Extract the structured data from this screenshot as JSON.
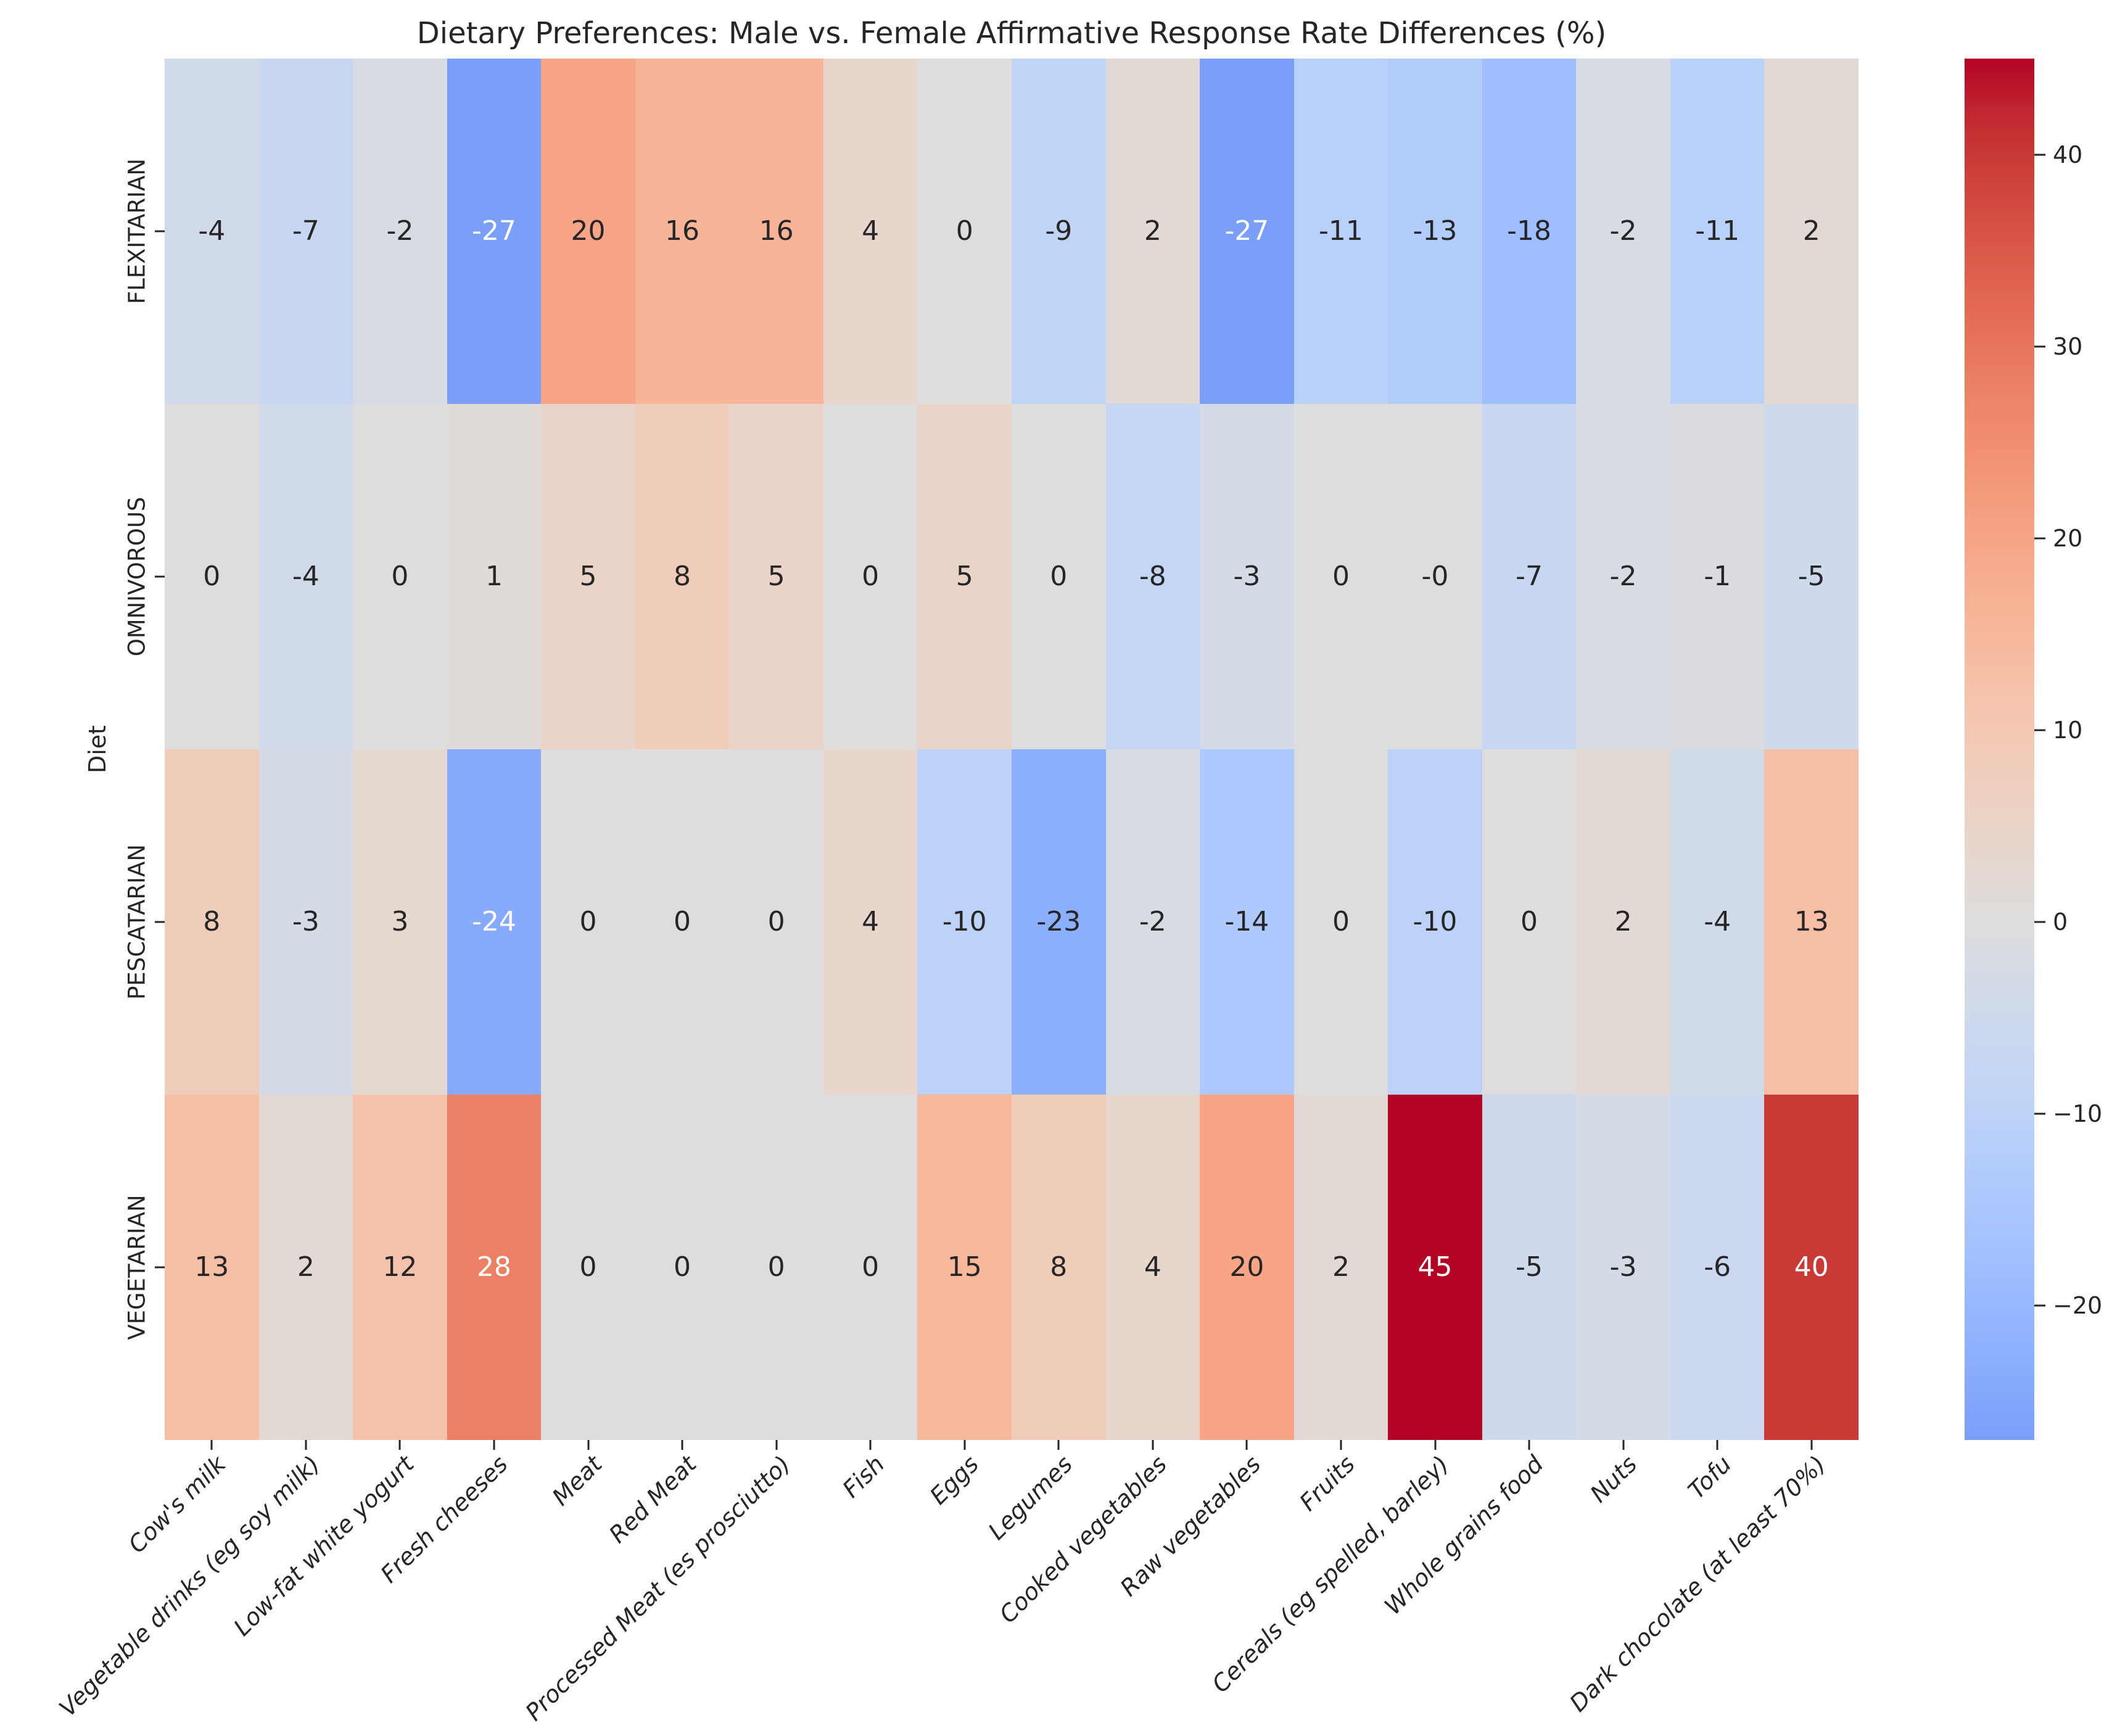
{
  "chart_data": {
    "type": "heatmap",
    "title": "Dietary Preferences: Male vs. Female Affirmative Response Rate Differences (%)",
    "xlabel": "",
    "ylabel": "Diet",
    "rows": [
      "FLEXITARIAN",
      "OMNIVOROUS",
      "PESCATARIAN",
      "VEGETARIAN"
    ],
    "columns": [
      "Cow's milk",
      "Vegetable drinks (eg soy milk)",
      "Low-fat white yogurt",
      "Fresh cheeses",
      "Meat",
      "Red Meat",
      "Processed Meat (es prosciutto)",
      "Fish",
      "Eggs",
      "Legumes",
      "Cooked vegetables",
      "Raw vegetables",
      "Fruits",
      "Cereals (eg spelled, barley)",
      "Whole grains food",
      "Nuts",
      "Tofu",
      "Dark chocolate (at least 70%)"
    ],
    "values": [
      [
        -4,
        -7,
        -2,
        -27,
        20,
        16,
        16,
        4,
        0,
        -9,
        2,
        -27,
        -11,
        -13,
        -18,
        -2,
        -11,
        2
      ],
      [
        0,
        -4,
        0,
        1,
        5,
        8,
        5,
        0,
        5,
        0,
        -8,
        -3,
        0,
        0,
        -7,
        -2,
        -1,
        -5
      ],
      [
        8,
        -3,
        3,
        -24,
        0,
        0,
        0,
        4,
        -10,
        -23,
        -2,
        -14,
        0,
        -10,
        0,
        2,
        -4,
        13
      ],
      [
        13,
        2,
        12,
        28,
        0,
        0,
        0,
        0,
        15,
        8,
        4,
        20,
        2,
        45,
        -5,
        -3,
        -6,
        40
      ]
    ],
    "cell_labels": [
      [
        "-4",
        "-7",
        "-2",
        "-27",
        "20",
        "16",
        "16",
        "4",
        "0",
        "-9",
        "2",
        "-27",
        "-11",
        "-13",
        "-18",
        "-2",
        "-11",
        "2"
      ],
      [
        "0",
        "-4",
        "0",
        "1",
        "5",
        "8",
        "5",
        "0",
        "5",
        "0",
        "-8",
        "-3",
        "0",
        "-0",
        "-7",
        "-2",
        "-1",
        "-5"
      ],
      [
        "8",
        "-3",
        "3",
        "-24",
        "0",
        "0",
        "0",
        "4",
        "-10",
        "-23",
        "-2",
        "-14",
        "0",
        "-10",
        "0",
        "2",
        "-4",
        "13"
      ],
      [
        "13",
        "2",
        "12",
        "28",
        "0",
        "0",
        "0",
        "0",
        "15",
        "8",
        "4",
        "20",
        "2",
        "45",
        "-5",
        "-3",
        "-6",
        "40"
      ]
    ],
    "colormap": "coolwarm",
    "vmin": -27,
    "vmax": 45,
    "center": 0,
    "annotated": true,
    "grid": false,
    "legend_position": "right",
    "colorbar_ticks": [
      {
        "value": 40,
        "label": "40"
      },
      {
        "value": 30,
        "label": "30"
      },
      {
        "value": 20,
        "label": "20"
      },
      {
        "value": 10,
        "label": "10"
      },
      {
        "value": 0,
        "label": "0"
      },
      {
        "value": -10,
        "label": "−10"
      },
      {
        "value": -20,
        "label": "−20"
      }
    ]
  },
  "colors": {
    "background": "#ffffff",
    "text": "#262626",
    "annotation_dark": "#262626",
    "annotation_light": "#ffffff"
  }
}
